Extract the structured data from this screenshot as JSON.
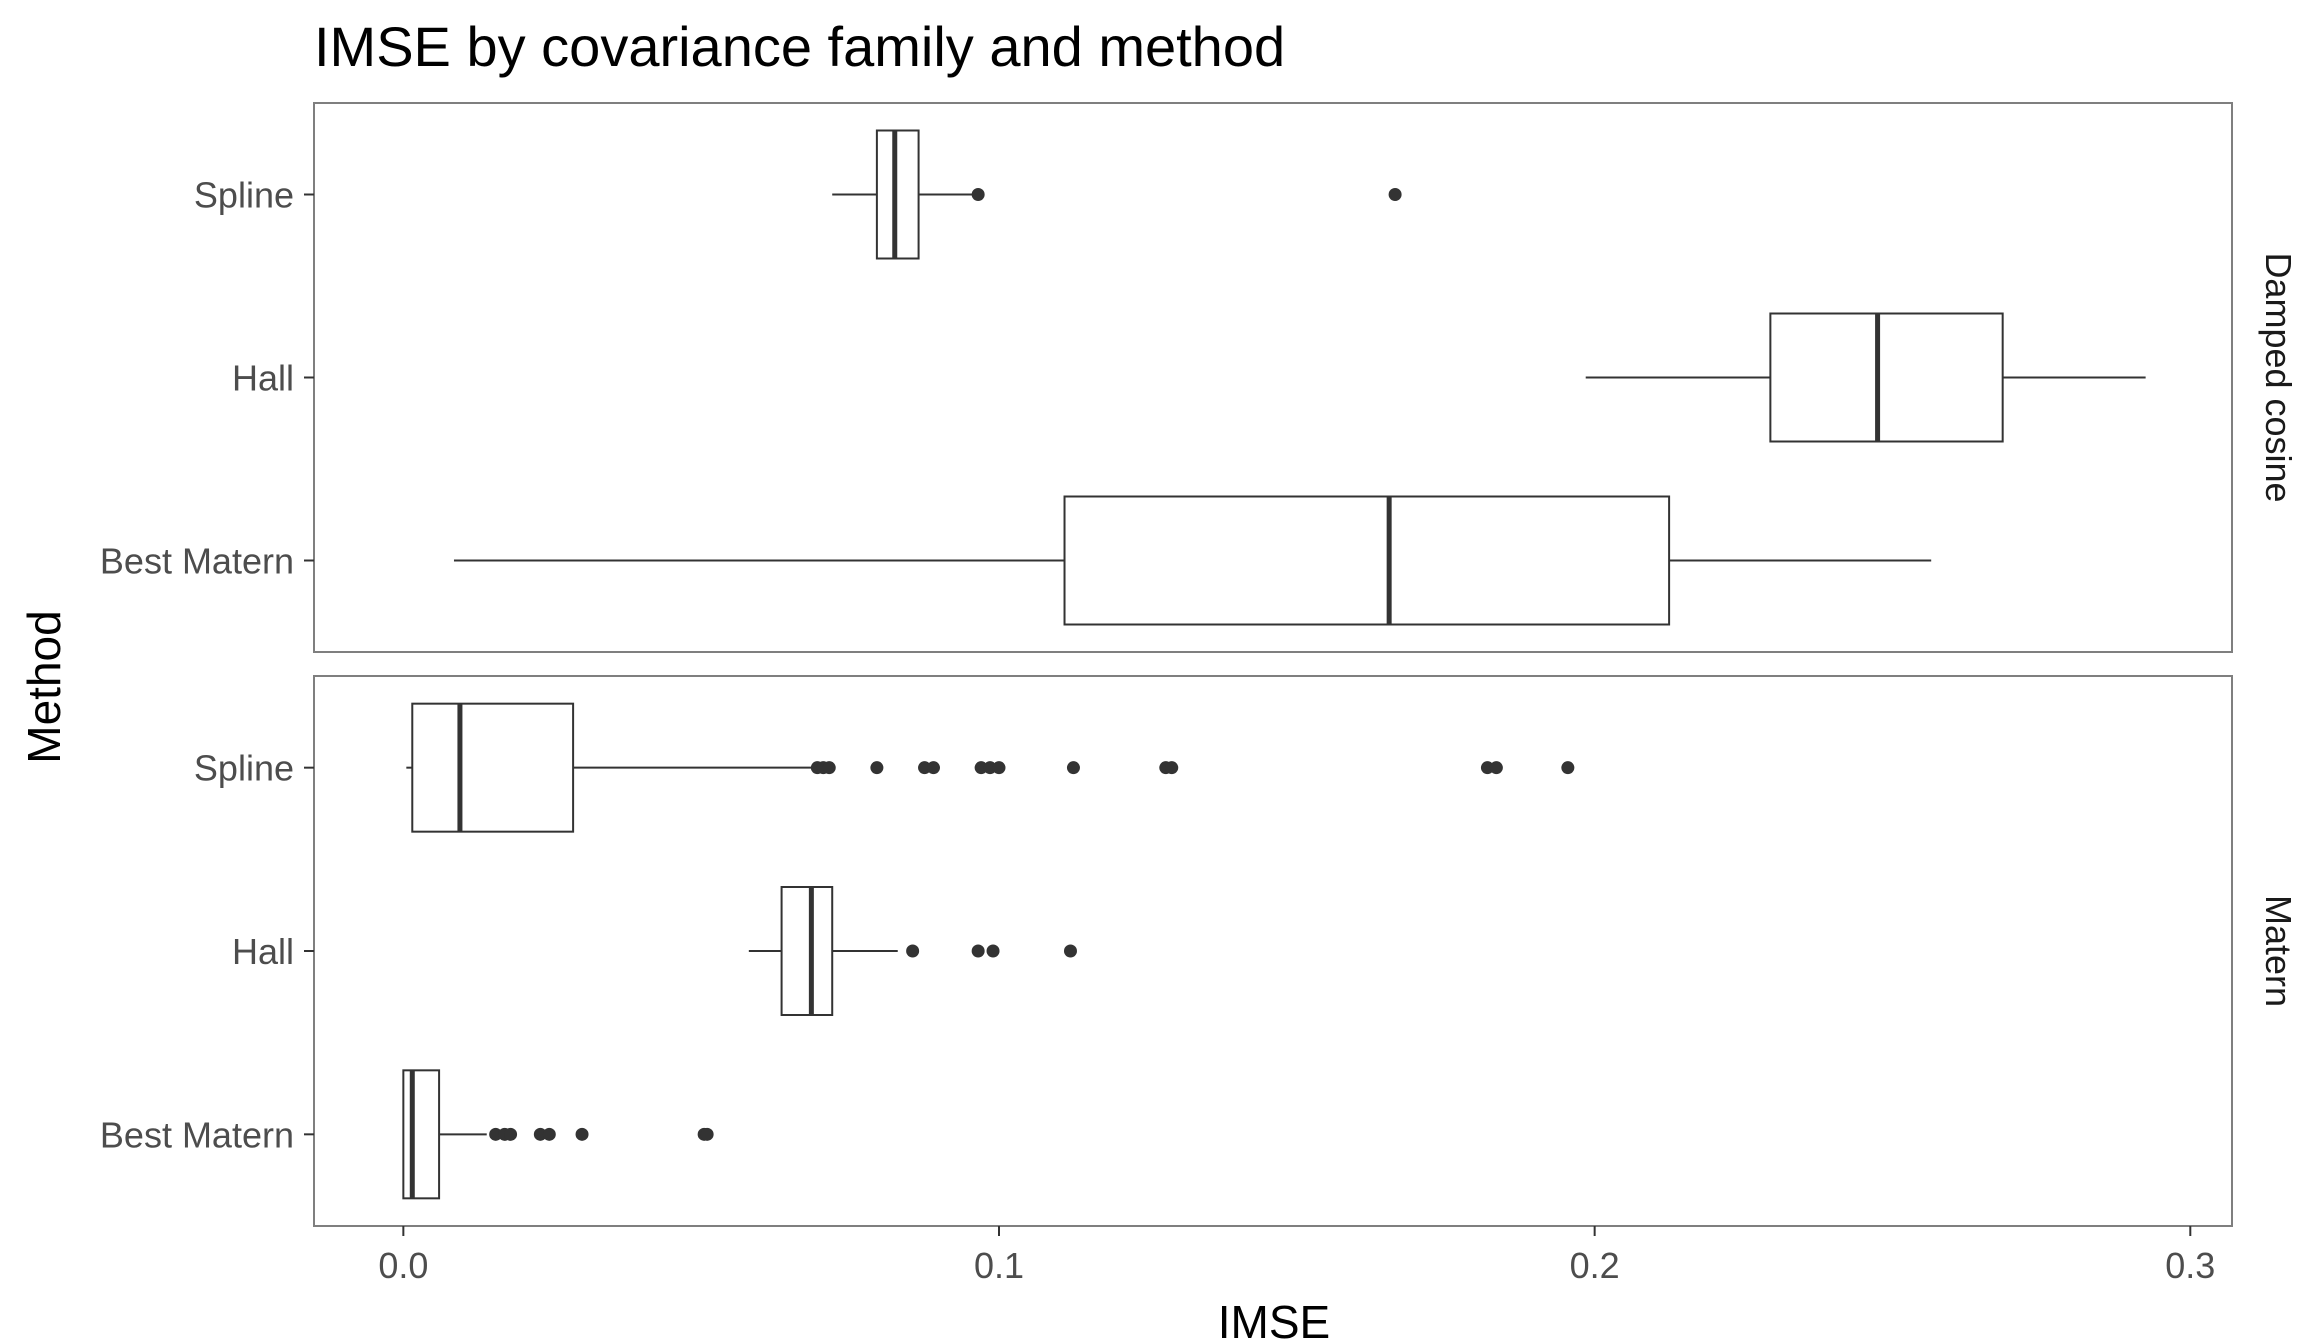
{
  "chart_data": {
    "type": "boxplot",
    "title": "IMSE by covariance family and method",
    "xlabel": "IMSE",
    "ylabel": "Method",
    "xlim": [
      -0.015,
      0.307
    ],
    "x_ticks": [
      "0.0",
      "0.1",
      "0.2",
      "0.3"
    ],
    "x_tick_values": [
      0.0,
      0.1,
      0.2,
      0.3
    ],
    "categories": [
      "Spline",
      "Hall",
      "Best Matern"
    ],
    "orientation": "horizontal",
    "grid": false,
    "facets": [
      {
        "label": "Damped cosine",
        "boxes": [
          {
            "method": "Spline",
            "whisker_low": 0.072,
            "q1": 0.0795,
            "median": 0.0825,
            "q3": 0.0865,
            "whisker_high": 0.0955,
            "outliers": [
              0.0965,
              0.1665
            ]
          },
          {
            "method": "Hall",
            "whisker_low": 0.1985,
            "q1": 0.2295,
            "median": 0.2475,
            "q3": 0.2685,
            "whisker_high": 0.2925,
            "outliers": []
          },
          {
            "method": "Best Matern",
            "whisker_low": 0.0085,
            "q1": 0.111,
            "median": 0.1655,
            "q3": 0.2125,
            "whisker_high": 0.2565,
            "outliers": []
          }
        ]
      },
      {
        "label": "Matern",
        "boxes": [
          {
            "method": "Spline",
            "whisker_low": 0.0005,
            "q1": 0.0015,
            "median": 0.0095,
            "q3": 0.0285,
            "whisker_high": 0.0685,
            "outliers": [
              0.0695,
              0.0705,
              0.0715,
              0.0795,
              0.0875,
              0.089,
              0.097,
              0.0985,
              0.1,
              0.1125,
              0.128,
              0.129,
              0.182,
              0.1835,
              0.1955
            ]
          },
          {
            "method": "Hall",
            "whisker_low": 0.058,
            "q1": 0.0635,
            "median": 0.0685,
            "q3": 0.072,
            "whisker_high": 0.083,
            "outliers": [
              0.0855,
              0.0965,
              0.099,
              0.112
            ]
          },
          {
            "method": "Best Matern",
            "whisker_low": 0.0,
            "q1": 0.0,
            "median": 0.0015,
            "q3": 0.006,
            "whisker_high": 0.014,
            "outliers": [
              0.0155,
              0.017,
              0.018,
              0.023,
              0.0245,
              0.03,
              0.0505,
              0.051
            ]
          }
        ]
      }
    ],
    "colors": {
      "box_stroke": "#333333",
      "box_fill": "#ffffff",
      "outlier": "#333333",
      "panel_border": "#7f7f7f",
      "tick_text": "#4d4d4d"
    }
  }
}
